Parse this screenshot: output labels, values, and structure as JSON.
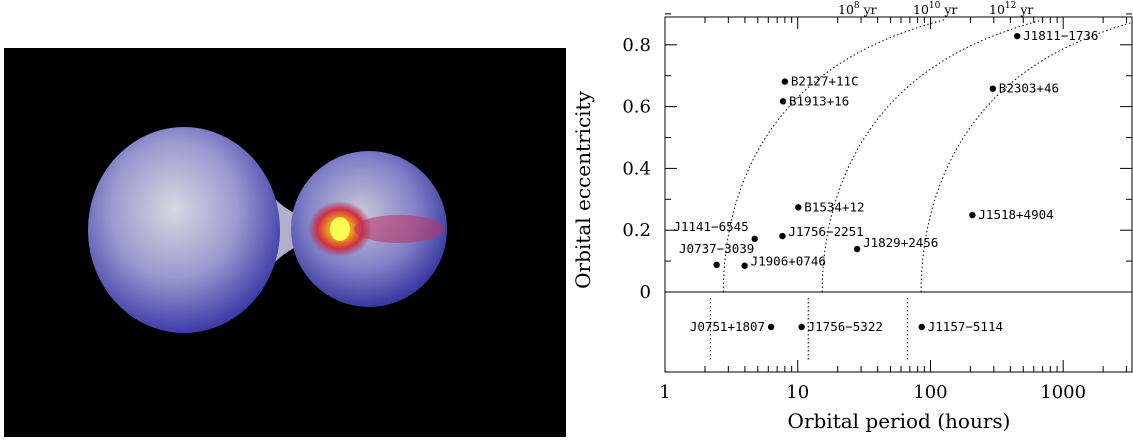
{
  "image_panel": {
    "description_icon": "binary-star-simulation-icon"
  },
  "chart_data": {
    "type": "scatter",
    "title": "",
    "xlabel": "Orbital period (hours)",
    "ylabel": "Orbital eccentricity",
    "xscale": "log",
    "xlim": [
      1,
      3300
    ],
    "ylim": [
      0,
      0.89
    ],
    "lower_panel": true,
    "x_tick_labels": [
      "1",
      "10",
      "100",
      "1000"
    ],
    "x_tick_values": [
      1,
      10,
      100,
      1000
    ],
    "y_tick_labels": [
      "0",
      "0.2",
      "0.4",
      "0.6",
      "0.8"
    ],
    "y_tick_values": [
      0,
      0.2,
      0.4,
      0.6,
      0.8
    ],
    "points": [
      {
        "label": "J1811−1736",
        "x": 450,
        "y": 0.828
      },
      {
        "label": "B2127+11C",
        "x": 8.0,
        "y": 0.681
      },
      {
        "label": "B2303+46",
        "x": 295,
        "y": 0.658
      },
      {
        "label": "B1913+16",
        "x": 7.75,
        "y": 0.617
      },
      {
        "label": "B1534+12",
        "x": 10.1,
        "y": 0.274
      },
      {
        "label": "J1518+4904",
        "x": 207,
        "y": 0.249
      },
      {
        "label": "J1141−6545",
        "x": 4.74,
        "y": 0.172
      },
      {
        "label": "J1756−2251",
        "x": 7.67,
        "y": 0.181
      },
      {
        "label": "J1829+2456",
        "x": 28,
        "y": 0.139
      },
      {
        "label": "J0737−3039",
        "x": 2.45,
        "y": 0.088
      },
      {
        "label": "J1906+0746",
        "x": 3.98,
        "y": 0.085
      }
    ],
    "circular_points": [
      {
        "label": "J0751+1807",
        "x": 6.3
      },
      {
        "label": "J1756−5322",
        "x": 10.7
      },
      {
        "label": "J1157−5114",
        "x": 86
      }
    ],
    "lifetime_curves": [
      {
        "label_base": "10",
        "label_exp": "8",
        "label_unit": "yr",
        "x0": 2.75
      },
      {
        "label_base": "10",
        "label_exp": "10",
        "label_unit": "yr",
        "x0": 15.3
      },
      {
        "label_base": "10",
        "label_exp": "12",
        "label_unit": "yr",
        "x0": 85
      }
    ],
    "lower_lines_x": [
      2.2,
      12,
      67
    ]
  }
}
